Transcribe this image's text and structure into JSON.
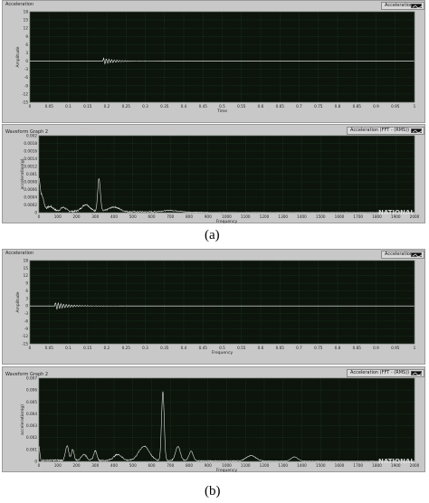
{
  "charts": [
    {
      "panel_title": "Acceleration",
      "legend": "Acceleration",
      "type": "line",
      "xlabel": "Time",
      "ylabel": "Amplitude",
      "xlim": [
        0,
        1
      ],
      "ylim": [
        -15,
        18
      ],
      "xticks": [
        "0",
        "0.05",
        "0.1",
        "0.15",
        "0.2",
        "0.25",
        "0.3",
        "0.35",
        "0.4",
        "0.45",
        "0.5",
        "0.55",
        "0.6",
        "0.65",
        "0.7",
        "0.75",
        "0.8",
        "0.85",
        "0.9",
        "0.95",
        "1"
      ],
      "yticks": [
        "-15",
        "-12",
        "-9",
        "-6",
        "-3",
        "0",
        "3",
        "6",
        "9",
        "12",
        "15",
        "18"
      ],
      "burst_start": 0.19,
      "burst_peak": 1.2,
      "burst_decay": 0.03
    },
    {
      "panel_title": "Waveform Graph 2",
      "legend": "Acceleration (FFT - (RMS))",
      "type": "line",
      "xlabel": "Frequency",
      "ylabel": "acceleration(g)",
      "xlim": [
        0,
        2000
      ],
      "ylim": [
        0,
        0.002
      ],
      "xticks": [
        "0",
        "100",
        "200",
        "300",
        "400",
        "500",
        "600",
        "700",
        "800",
        "900",
        "1000",
        "1100",
        "1200",
        "1300",
        "1400",
        "1500",
        "1600",
        "1700",
        "1800",
        "1900",
        "2000"
      ],
      "yticks": [
        "0",
        "0.0002",
        "0.0004",
        "0.0006",
        "0.0008",
        "0.001",
        "0.0012",
        "0.0014",
        "0.0016",
        "0.0018",
        "0.002"
      ],
      "watermark": "NATIONAL",
      "peaks": [
        {
          "f": 0,
          "a": 0.0007,
          "w": 8
        },
        {
          "f": 15,
          "a": 0.0004,
          "w": 15
        },
        {
          "f": 60,
          "a": 0.00012,
          "w": 25
        },
        {
          "f": 130,
          "a": 0.0001,
          "w": 20
        },
        {
          "f": 250,
          "a": 0.00018,
          "w": 30
        },
        {
          "f": 320,
          "a": 0.00085,
          "w": 10
        },
        {
          "f": 400,
          "a": 0.00012,
          "w": 40
        },
        {
          "f": 700,
          "a": 4e-05,
          "w": 60
        }
      ],
      "floor": 4e-05,
      "noise_end": 900,
      "tail": 8e-06
    },
    {
      "panel_title": "Acceleration",
      "legend": "Acceleration",
      "type": "line",
      "xlabel": "Frequency",
      "ylabel": "Amplitude",
      "xlim": [
        0,
        1
      ],
      "ylim": [
        -15,
        18
      ],
      "xticks": [
        "0",
        "0.05",
        "0.1",
        "0.15",
        "0.2",
        "0.25",
        "0.3",
        "0.35",
        "0.4",
        "0.45",
        "0.5",
        "0.55",
        "0.6",
        "0.65",
        "0.7",
        "0.75",
        "0.8",
        "0.85",
        "0.9",
        "0.95",
        "1"
      ],
      "yticks": [
        "-15",
        "-12",
        "-9",
        "-6",
        "-3",
        "0",
        "3",
        "6",
        "9",
        "12",
        "15",
        "18"
      ],
      "burst_start": 0.065,
      "burst_peak": 1.5,
      "burst_decay": 0.035
    },
    {
      "panel_title": "Waveform Graph 2",
      "legend": "Acceleration (FFT - (RMS))",
      "type": "line",
      "xlabel": "Frequency",
      "ylabel": "acceleration(g)",
      "xlim": [
        0,
        2000
      ],
      "ylim": [
        0,
        0.007
      ],
      "xticks": [
        "0",
        "100",
        "200",
        "300",
        "400",
        "500",
        "600",
        "700",
        "800",
        "900",
        "1000",
        "1100",
        "1200",
        "1300",
        "1400",
        "1500",
        "1600",
        "1700",
        "1800",
        "1900",
        "2000"
      ],
      "yticks": [
        "0",
        "0.001",
        "0.002",
        "0.003",
        "0.004",
        "0.005",
        "0.006",
        "0.007"
      ],
      "watermark": "NATIONAL",
      "peaks": [
        {
          "f": 0,
          "a": 0.0012,
          "w": 6
        },
        {
          "f": 150,
          "a": 0.0012,
          "w": 12
        },
        {
          "f": 180,
          "a": 0.0009,
          "w": 10
        },
        {
          "f": 240,
          "a": 0.0005,
          "w": 20
        },
        {
          "f": 300,
          "a": 0.0008,
          "w": 12
        },
        {
          "f": 420,
          "a": 0.0005,
          "w": 30
        },
        {
          "f": 560,
          "a": 0.0012,
          "w": 40
        },
        {
          "f": 660,
          "a": 0.0058,
          "w": 10
        },
        {
          "f": 740,
          "a": 0.0012,
          "w": 18
        },
        {
          "f": 810,
          "a": 0.0008,
          "w": 15
        },
        {
          "f": 1130,
          "a": 0.00045,
          "w": 35
        },
        {
          "f": 1360,
          "a": 0.00035,
          "w": 25
        }
      ],
      "floor": 0.0001,
      "noise_end": 1500,
      "tail": 3e-05
    }
  ],
  "captions": [
    "(a)",
    "(b)"
  ]
}
